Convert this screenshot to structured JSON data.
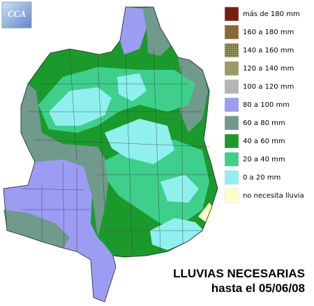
{
  "logo": "CCA",
  "legend": {
    "items": [
      {
        "label": "más de 180 mm",
        "color": "#7a1c12"
      },
      {
        "label": "160 a 180 mm",
        "color": "#8a6a34"
      },
      {
        "label": "140 a 160 mm",
        "color": "#6e6a2c"
      },
      {
        "label": "120 a 140 mm",
        "color": "#9c9a62"
      },
      {
        "label": "100 a 120 mm",
        "color": "#b4b4b4"
      },
      {
        "label": "80 a 100 mm",
        "color": "#9c9cf2"
      },
      {
        "label": "60 a 80 mm",
        "color": "#6f9a8c"
      },
      {
        "label": "40 a 60 mm",
        "color": "#1b9a2c"
      },
      {
        "label": "20 a 40 mm",
        "color": "#3fcf8c"
      },
      {
        "label": "0 a 20 mm",
        "color": "#90f0ee"
      },
      {
        "label": "no necesita lluvia",
        "color": "#ffffca"
      }
    ]
  },
  "title": "LLUVIAS NECESARIAS",
  "subtitle": "hasta el 05/06/08"
}
